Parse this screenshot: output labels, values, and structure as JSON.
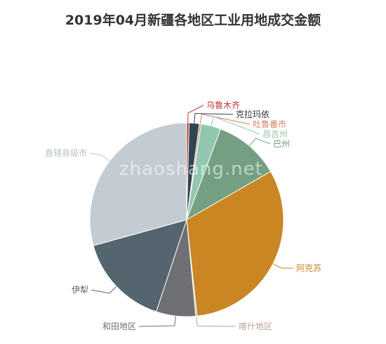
{
  "watermark": "zhaoshang.net",
  "chart_data": {
    "type": "pie",
    "title": "2019年04月新疆各地区工业用地成交金额",
    "slices": [
      {
        "label": "乌鲁木齐",
        "value": 0.4,
        "color": "#c23531"
      },
      {
        "label": "克拉玛依",
        "value": 1.7,
        "color": "#2f4554"
      },
      {
        "label": "吐鲁番市",
        "value": 0.3,
        "color": "#d48265"
      },
      {
        "label": "昌吉州",
        "value": 3.3,
        "color": "#91c7ae"
      },
      {
        "label": "巴州",
        "value": 11.0,
        "color": "#749f83"
      },
      {
        "label": "阿克苏",
        "value": 31.6,
        "color": "#ca8622"
      },
      {
        "label": "喀什地区",
        "value": 0.2,
        "color": "#bda29a"
      },
      {
        "label": "和田地区",
        "value": 6.6,
        "color": "#6e7074"
      },
      {
        "label": "伊犁",
        "value": 15.6,
        "color": "#546570"
      },
      {
        "label": "直辖县级市",
        "value": 29.3,
        "color": "#c4ccd3"
      }
    ]
  }
}
